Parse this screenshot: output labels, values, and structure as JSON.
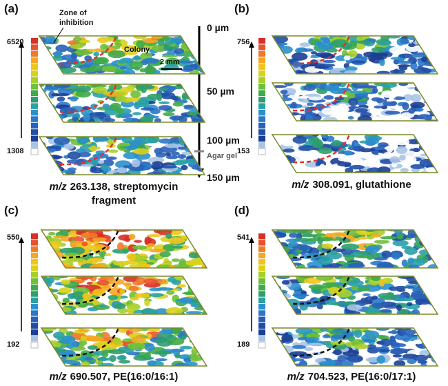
{
  "depth_labels": [
    "0 µm",
    "50 µm",
    "100 µm",
    "150 µm"
  ],
  "annotations": {
    "zone": [
      "Zone of",
      "inhibition"
    ],
    "colony": "Colony",
    "scale": "2 mm",
    "agar": "Agar gel"
  },
  "panels": [
    {
      "letter": "(a)",
      "max": 6520,
      "min": 1308,
      "mz": "m/z",
      "caption": [
        "263.138, streptomycin",
        "fragment"
      ]
    },
    {
      "letter": "(b)",
      "max": 756,
      "min": 153,
      "mz": "m/z",
      "caption": [
        "308.091, glutathione"
      ]
    },
    {
      "letter": "(c)",
      "max": 550,
      "min": 192,
      "mz": "m/z",
      "caption": [
        "690.507, PE(16:0/16:1)"
      ]
    },
    {
      "letter": "(d)",
      "max": 541,
      "min": 189,
      "mz": "m/z",
      "caption": [
        "704.523, PE(16:0/17:1)"
      ]
    }
  ]
}
